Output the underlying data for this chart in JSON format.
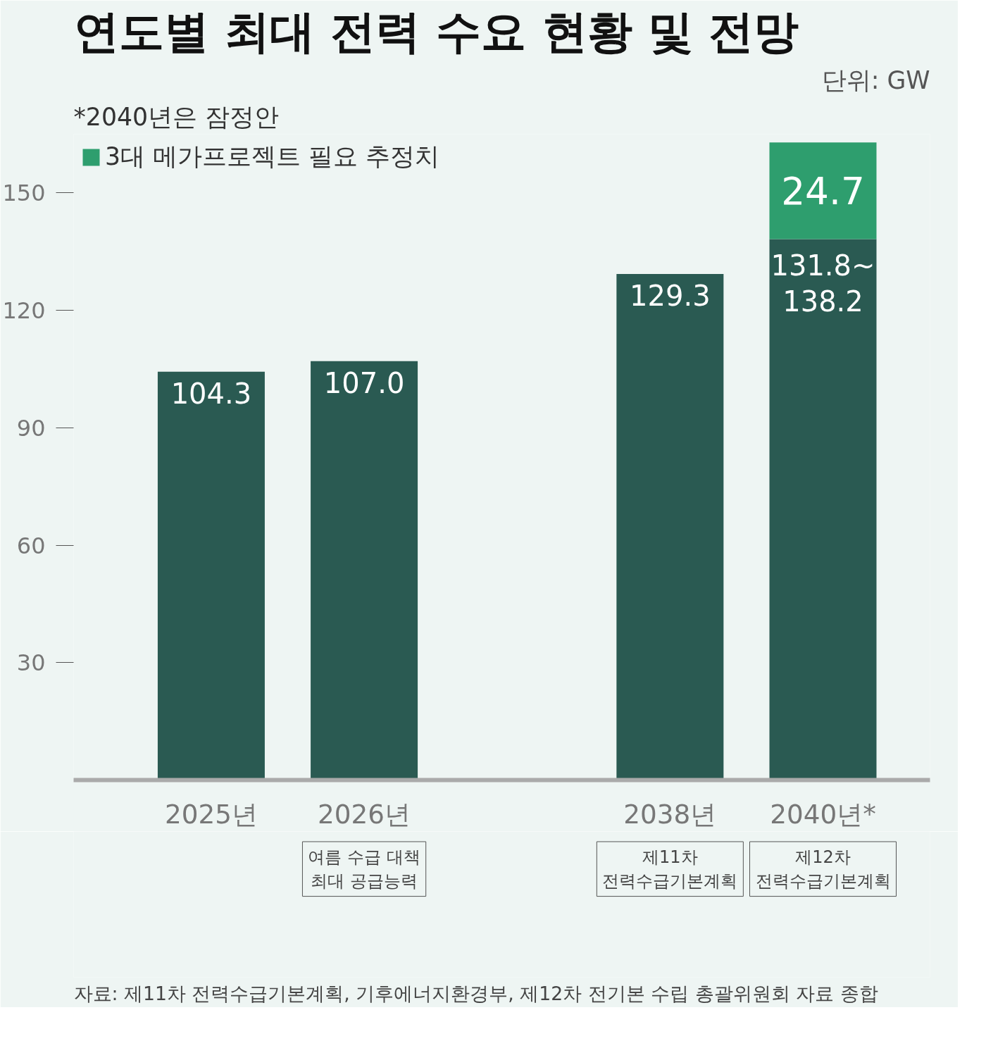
{
  "chart_data": {
    "type": "bar",
    "title": "연도별 최대 전력 수요 현황 및 전망",
    "subtitle": "*2040년은 잠정안",
    "stacked": true,
    "categories": [
      "2025년",
      "2026년",
      null,
      "2038년",
      "2040년*"
    ],
    "series": [
      {
        "color": "#2a5a52",
        "values": [
          104.3,
          107.0,
          null,
          129.3,
          138.2
        ],
        "value_labels": [
          "104.3",
          "107.0",
          null,
          "129.3",
          "131.8~\n138.2"
        ]
      },
      {
        "name": "3대 메가프로젝트 필요 추정치",
        "color": "#2e9e6e",
        "values": [
          null,
          null,
          null,
          null,
          24.7
        ],
        "value_labels": [
          null,
          null,
          null,
          null,
          "24.7"
        ]
      }
    ],
    "ylim": [
      0,
      165
    ],
    "yticks": [
      30,
      60,
      90,
      120,
      150
    ],
    "grid": false,
    "legend": "top left",
    "annotations": [
      "단위: GW",
      "여름 수급 대책\n최대 공급능력",
      "제11차\n전력수급기본계획",
      "제12차\n전력수급기본계획",
      "자료: 제11차 전력수급기본계획, 기후에너지환경부, 제12차 전기본 수립 총괄위원회 자료 종합"
    ]
  }
}
